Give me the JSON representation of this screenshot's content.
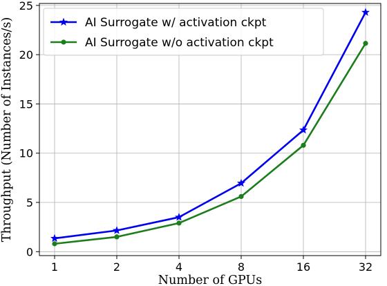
{
  "chart_data": {
    "type": "line",
    "categories": [
      "1",
      "2",
      "4",
      "8",
      "16",
      "32"
    ],
    "x": [
      1,
      2,
      4,
      8,
      16,
      32
    ],
    "xscale": "log2",
    "series": [
      {
        "name": "AI Surrogate w/ activation ckpt",
        "color": "#0000ee",
        "marker": "star",
        "values": [
          1.35,
          2.15,
          3.5,
          6.95,
          12.35,
          24.3
        ]
      },
      {
        "name": "AI Surrogate w/o activation ckpt",
        "color": "#1b7d1b",
        "marker": "circle",
        "values": [
          0.8,
          1.5,
          2.9,
          5.6,
          10.8,
          21.15
        ]
      }
    ],
    "xlabel": "Number of GPUs",
    "ylabel": "Throughput (Number of Instances/s)",
    "ylim": [
      -0.4,
      25.2
    ],
    "yticks": [
      0,
      5,
      10,
      15,
      20,
      25
    ],
    "grid": true,
    "legend_position": "upper-left"
  }
}
